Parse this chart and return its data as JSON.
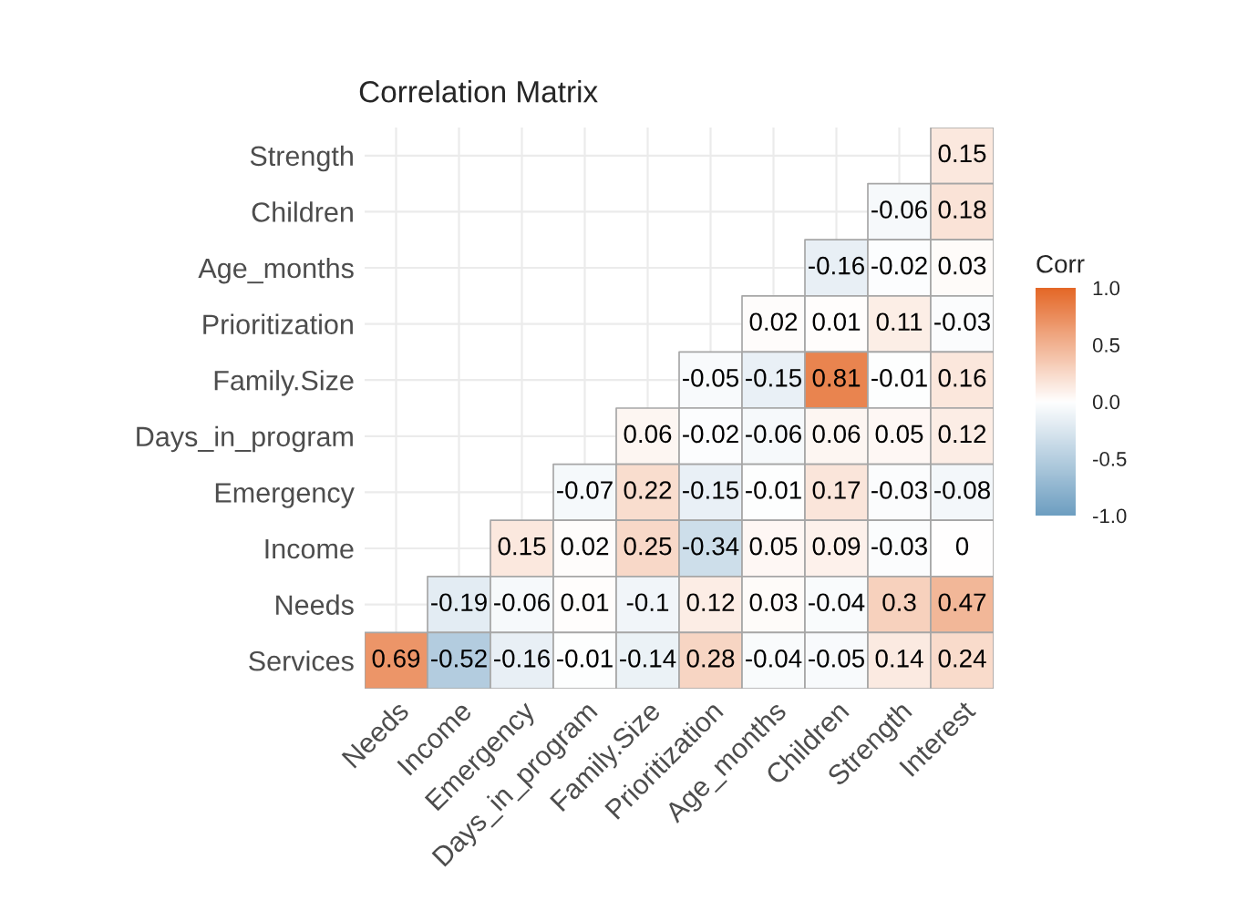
{
  "chart_data": {
    "type": "heatmap",
    "title": "Correlation Matrix",
    "clabel": "Corr",
    "categories": [
      "Needs",
      "Income",
      "Emergency",
      "Days_in_program",
      "Family.Size",
      "Prioritization",
      "Age_months",
      "Children",
      "Strength",
      "Interest"
    ],
    "y_categories": [
      "Strength",
      "Children",
      "Age_months",
      "Prioritization",
      "Family.Size",
      "Days_in_program",
      "Emergency",
      "Income",
      "Needs",
      "Services"
    ],
    "cells": [
      [
        null,
        null,
        null,
        null,
        null,
        null,
        null,
        null,
        null,
        0.15
      ],
      [
        null,
        null,
        null,
        null,
        null,
        null,
        null,
        null,
        -0.06,
        0.18
      ],
      [
        null,
        null,
        null,
        null,
        null,
        null,
        null,
        -0.16,
        -0.02,
        0.03
      ],
      [
        null,
        null,
        null,
        null,
        null,
        null,
        0.02,
        0.01,
        0.11,
        -0.03
      ],
      [
        null,
        null,
        null,
        null,
        null,
        -0.05,
        -0.15,
        0.81,
        -0.01,
        0.16
      ],
      [
        null,
        null,
        null,
        null,
        0.06,
        -0.02,
        -0.06,
        0.06,
        0.05,
        0.12
      ],
      [
        null,
        null,
        null,
        -0.07,
        0.22,
        -0.15,
        -0.01,
        0.17,
        -0.03,
        -0.08
      ],
      [
        null,
        null,
        0.15,
        0.02,
        0.25,
        -0.34,
        0.05,
        0.09,
        -0.03,
        0
      ],
      [
        null,
        -0.19,
        -0.06,
        0.01,
        -0.1,
        0.12,
        0.03,
        -0.04,
        0.3,
        0.47
      ],
      [
        0.69,
        -0.52,
        -0.16,
        -0.01,
        -0.14,
        0.28,
        -0.04,
        -0.05,
        0.14,
        0.24
      ]
    ],
    "colors": [
      "#6d9ec1",
      "#ffffff",
      "#e46726"
    ],
    "clim": [
      -1.0,
      1.0
    ],
    "cticks": [
      {
        "value": -1,
        "label": "-1.0"
      },
      -0.5,
      {
        "value": 0,
        "label": "0.0"
      },
      0.5,
      {
        "value": 1,
        "label": "1.0"
      }
    ],
    "data_labels": true,
    "grid": true
  }
}
